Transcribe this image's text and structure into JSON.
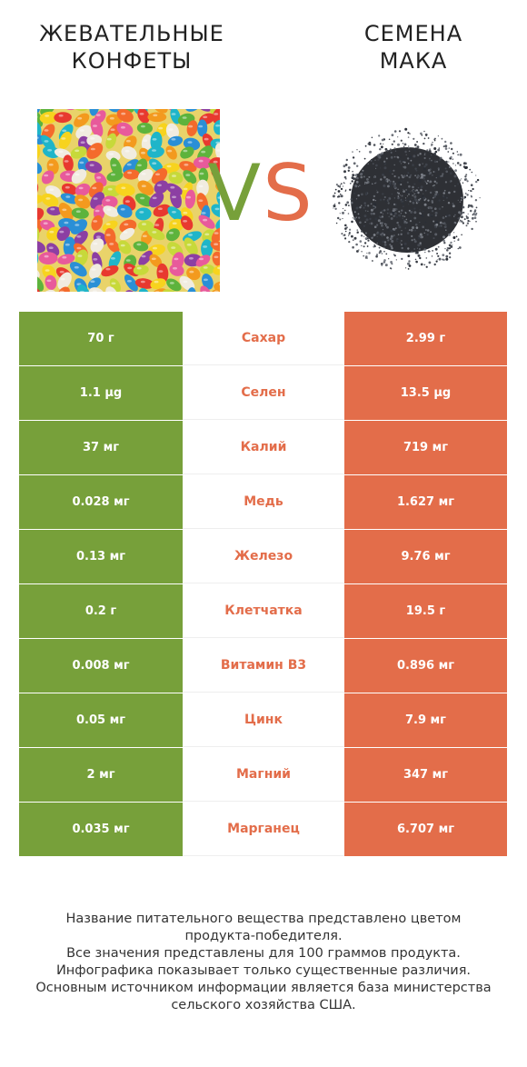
{
  "header": {
    "left_title": [
      "ЖЕВАТЕЛЬНЫЕ",
      "КОНФЕТЫ"
    ],
    "right_title": [
      "СЕМЕНА",
      "МАКА"
    ],
    "vs_v": "V",
    "vs_s": "S"
  },
  "colors": {
    "left": "#77a03a",
    "right": "#e36d4a",
    "text_dark": "#222222"
  },
  "images": {
    "left": "jelly-beans-image",
    "right": "poppy-seeds-image"
  },
  "rows": [
    {
      "nutrient": "Сахар",
      "left": "70 г",
      "right": "2.99 г",
      "winner": "right"
    },
    {
      "nutrient": "Селен",
      "left": "1.1 µg",
      "right": "13.5 µg",
      "winner": "right"
    },
    {
      "nutrient": "Калий",
      "left": "37 мг",
      "right": "719 мг",
      "winner": "right"
    },
    {
      "nutrient": "Медь",
      "left": "0.028 мг",
      "right": "1.627 мг",
      "winner": "right"
    },
    {
      "nutrient": "Железо",
      "left": "0.13 мг",
      "right": "9.76 мг",
      "winner": "right"
    },
    {
      "nutrient": "Клетчатка",
      "left": "0.2 г",
      "right": "19.5 г",
      "winner": "right"
    },
    {
      "nutrient": "Витамин B3",
      "left": "0.008 мг",
      "right": "0.896 мг",
      "winner": "right"
    },
    {
      "nutrient": "Цинк",
      "left": "0.05 мг",
      "right": "7.9 мг",
      "winner": "right"
    },
    {
      "nutrient": "Магний",
      "left": "2 мг",
      "right": "347 мг",
      "winner": "right"
    },
    {
      "nutrient": "Марганец",
      "left": "0.035 мг",
      "right": "6.707 мг",
      "winner": "right"
    }
  ],
  "footer": [
    "Название питательного вещества представлено цветом",
    "продукта-победителя.",
    "Все значения представлены для 100 граммов продукта.",
    "Инфографика показывает только существенные различия.",
    "Основным источником информации является база министерства",
    "сельского хозяйства США."
  ]
}
